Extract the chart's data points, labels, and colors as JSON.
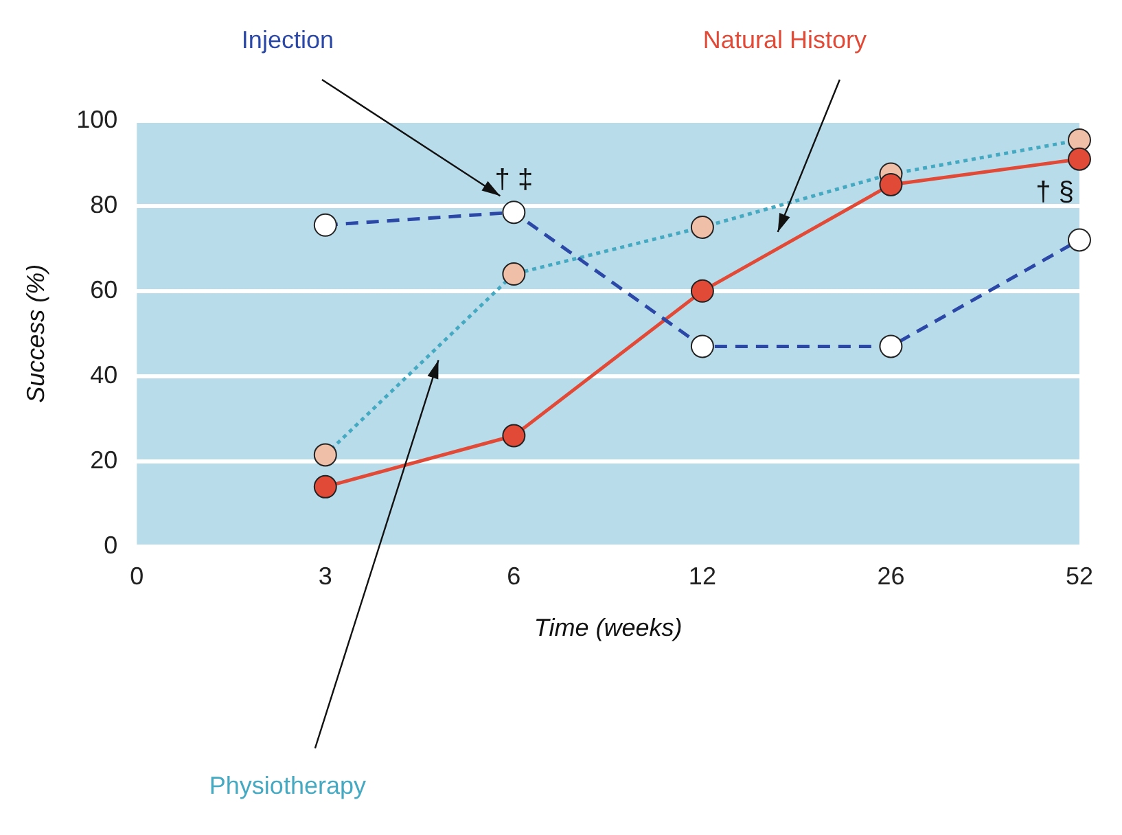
{
  "chart_data": {
    "type": "line",
    "xlabel": "Time (weeks)",
    "ylabel": "Success (%)",
    "categories": [
      "0",
      "3",
      "6",
      "12",
      "26",
      "52"
    ],
    "series": [
      {
        "name": "Injection",
        "color": "#2b48a6",
        "colors": [
          null,
          "#ffffff",
          "#ffffff",
          "#ffffff",
          "#ffffff",
          "#ffffff"
        ],
        "line_style": "dashed",
        "values": [
          null,
          75.5,
          78.5,
          47,
          47,
          72
        ]
      },
      {
        "name": "Natural History",
        "color": "#e24a38",
        "colors": [
          null,
          "#e24a38",
          "#e24a38",
          "#e24a38",
          "#e24a38",
          "#e24a38"
        ],
        "line_style": "solid",
        "values": [
          null,
          14,
          26,
          60,
          85,
          91
        ]
      },
      {
        "name": "Physiotherapy",
        "color": "#45a9c2",
        "colors": [
          null,
          "#f0bfa8",
          "#f0bfa8",
          "#f0bfa8",
          "#f0bfa8",
          "#f0bfa8"
        ],
        "line_style": "dotted",
        "values": [
          null,
          21.5,
          64,
          75,
          87.5,
          95.5
        ]
      }
    ],
    "ylim": [
      0,
      100
    ],
    "yticks": [
      0,
      20,
      40,
      60,
      80,
      100
    ],
    "grid": "y",
    "legend": false,
    "marker": "circle",
    "annotations": [
      "† ‡",
      "† §"
    ]
  }
}
